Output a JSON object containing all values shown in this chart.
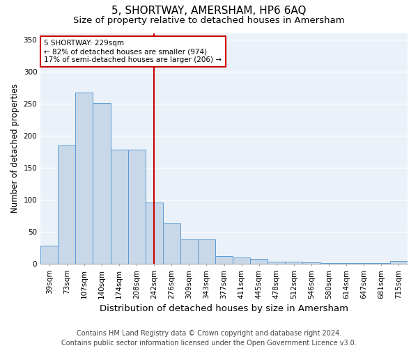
{
  "title": "5, SHORTWAY, AMERSHAM, HP6 6AQ",
  "subtitle": "Size of property relative to detached houses in Amersham",
  "xlabel": "Distribution of detached houses by size in Amersham",
  "ylabel": "Number of detached properties",
  "bar_color": "#c8d8e8",
  "bar_edge_color": "#5b9bd5",
  "background_color": "#eaf1f8",
  "grid_color": "#ffffff",
  "categories": [
    "39sqm",
    "73sqm",
    "107sqm",
    "140sqm",
    "174sqm",
    "208sqm",
    "242sqm",
    "276sqm",
    "309sqm",
    "343sqm",
    "377sqm",
    "411sqm",
    "445sqm",
    "478sqm",
    "512sqm",
    "546sqm",
    "580sqm",
    "614sqm",
    "647sqm",
    "681sqm",
    "715sqm"
  ],
  "values": [
    28,
    185,
    267,
    251,
    178,
    178,
    96,
    63,
    38,
    38,
    12,
    10,
    8,
    3,
    3,
    2,
    1,
    1,
    1,
    1,
    4
  ],
  "vline_x": 6.0,
  "vline_color": "#cc0000",
  "annotation_text": "5 SHORTWAY: 229sqm\n← 82% of detached houses are smaller (974)\n17% of semi-detached houses are larger (206) →",
  "annotation_box_color": "#ffffff",
  "annotation_box_edge": "#cc0000",
  "ylim": [
    0,
    360
  ],
  "yticks": [
    0,
    50,
    100,
    150,
    200,
    250,
    300,
    350
  ],
  "footer": "Contains HM Land Registry data © Crown copyright and database right 2024.\nContains public sector information licensed under the Open Government Licence v3.0.",
  "title_fontsize": 11,
  "subtitle_fontsize": 9.5,
  "ylabel_fontsize": 8.5,
  "xlabel_fontsize": 9.5,
  "tick_fontsize": 7.5,
  "footer_fontsize": 7,
  "annotation_fontsize": 7.5
}
